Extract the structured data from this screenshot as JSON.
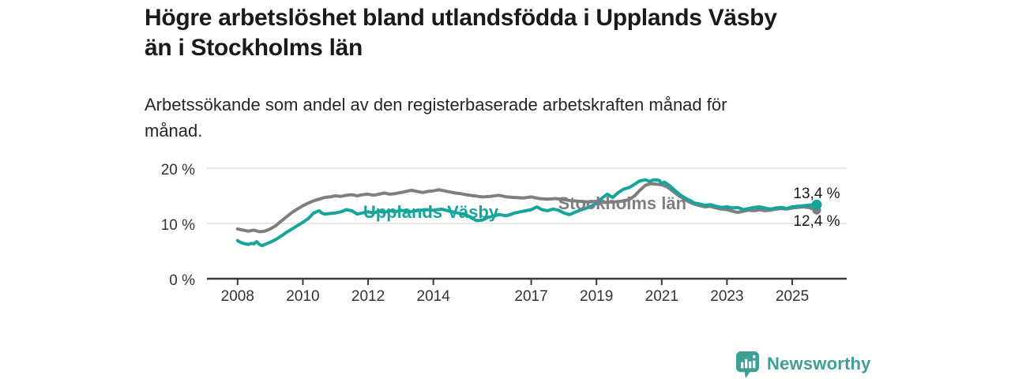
{
  "header": {
    "title_lines": [
      "Högre arbetslöshet bland utlandsfödda i Upplands Väsby",
      "än i Stockholms län"
    ],
    "subtitle_lines": [
      "Arbetssökande som andel av den registerbaserade arbetskraften månad för",
      "månad."
    ]
  },
  "chart_data": {
    "type": "line",
    "title": "Högre arbetslöshet bland utlandsfödda i Upplands Väsby än i Stockholms län",
    "subtitle": "Arbetssökande som andel av den registerbaserade arbetskraften månad för månad.",
    "xlabel": "",
    "ylabel": "",
    "grid": "horizontal",
    "legend_position": "inline-on-line",
    "xlim": [
      2007.06,
      2026.67
    ],
    "ylim": [
      0,
      20
    ],
    "x_ticks": [
      2008,
      2010,
      2012,
      2014,
      2017,
      2019,
      2021,
      2023,
      2025
    ],
    "y_ticks": [
      {
        "value": 0,
        "label": "0 %"
      },
      {
        "value": 10,
        "label": "10 %"
      },
      {
        "value": 20,
        "label": "20 %"
      }
    ],
    "style": {
      "grid_color": "#d9d9d9",
      "axis_color": "#3a3a3a",
      "tick_text_color": "#333333",
      "value_label_color": "#1a1a1a"
    },
    "series": [
      {
        "id": "stockholms-lan",
        "name": "Stockholms län",
        "color": "#7e7e83",
        "end_label": "12,4 %",
        "end_label_dy": 20,
        "dot_radius": 5.5,
        "label_at": [
          2017.82,
          12.55
        ],
        "points": [
          [
            2008.0,
            9.0
          ],
          [
            2008.17,
            8.8
          ],
          [
            2008.33,
            8.6
          ],
          [
            2008.5,
            8.8
          ],
          [
            2008.67,
            8.5
          ],
          [
            2008.83,
            8.6
          ],
          [
            2009.0,
            9.0
          ],
          [
            2009.17,
            9.6
          ],
          [
            2009.33,
            10.4
          ],
          [
            2009.5,
            11.2
          ],
          [
            2009.67,
            12.0
          ],
          [
            2009.83,
            12.6
          ],
          [
            2010.0,
            13.2
          ],
          [
            2010.17,
            13.7
          ],
          [
            2010.33,
            14.1
          ],
          [
            2010.5,
            14.4
          ],
          [
            2010.67,
            14.7
          ],
          [
            2010.83,
            14.8
          ],
          [
            2011.0,
            15.0
          ],
          [
            2011.17,
            14.9
          ],
          [
            2011.33,
            15.1
          ],
          [
            2011.5,
            15.2
          ],
          [
            2011.67,
            15.0
          ],
          [
            2011.83,
            15.2
          ],
          [
            2012.0,
            15.3
          ],
          [
            2012.17,
            15.1
          ],
          [
            2012.33,
            15.3
          ],
          [
            2012.5,
            15.5
          ],
          [
            2012.67,
            15.3
          ],
          [
            2012.83,
            15.4
          ],
          [
            2013.0,
            15.6
          ],
          [
            2013.17,
            15.8
          ],
          [
            2013.33,
            16.0
          ],
          [
            2013.5,
            15.8
          ],
          [
            2013.67,
            15.6
          ],
          [
            2013.83,
            15.8
          ],
          [
            2014.0,
            15.9
          ],
          [
            2014.17,
            16.1
          ],
          [
            2014.33,
            15.9
          ],
          [
            2014.5,
            15.7
          ],
          [
            2014.67,
            15.5
          ],
          [
            2014.83,
            15.4
          ],
          [
            2015.0,
            15.2
          ],
          [
            2015.25,
            15.0
          ],
          [
            2015.5,
            14.8
          ],
          [
            2015.75,
            14.9
          ],
          [
            2016.0,
            15.1
          ],
          [
            2016.25,
            14.8
          ],
          [
            2016.5,
            14.7
          ],
          [
            2016.75,
            14.6
          ],
          [
            2017.0,
            14.8
          ],
          [
            2017.25,
            14.5
          ],
          [
            2017.5,
            14.4
          ],
          [
            2017.75,
            14.5
          ],
          [
            2018.0,
            14.3
          ],
          [
            2018.25,
            14.1
          ],
          [
            2018.5,
            14.0
          ],
          [
            2018.75,
            13.9
          ],
          [
            2019.0,
            14.0
          ],
          [
            2019.25,
            13.8
          ],
          [
            2019.5,
            13.9
          ],
          [
            2019.75,
            14.0
          ],
          [
            2020.0,
            14.3
          ],
          [
            2020.17,
            15.0
          ],
          [
            2020.33,
            16.0
          ],
          [
            2020.5,
            16.9
          ],
          [
            2020.67,
            17.2
          ],
          [
            2020.83,
            17.1
          ],
          [
            2021.0,
            17.0
          ],
          [
            2021.17,
            16.6
          ],
          [
            2021.33,
            15.9
          ],
          [
            2021.5,
            15.1
          ],
          [
            2021.67,
            14.5
          ],
          [
            2021.83,
            13.9
          ],
          [
            2022.0,
            13.5
          ],
          [
            2022.17,
            13.2
          ],
          [
            2022.33,
            13.0
          ],
          [
            2022.5,
            13.1
          ],
          [
            2022.67,
            12.8
          ],
          [
            2022.83,
            12.6
          ],
          [
            2023.0,
            12.5
          ],
          [
            2023.17,
            12.2
          ],
          [
            2023.33,
            12.0
          ],
          [
            2023.5,
            12.2
          ],
          [
            2023.67,
            12.4
          ],
          [
            2023.83,
            12.3
          ],
          [
            2024.0,
            12.5
          ],
          [
            2024.17,
            12.3
          ],
          [
            2024.33,
            12.4
          ],
          [
            2024.5,
            12.6
          ],
          [
            2024.67,
            12.7
          ],
          [
            2024.83,
            12.6
          ],
          [
            2025.0,
            12.8
          ],
          [
            2025.17,
            12.9
          ],
          [
            2025.33,
            13.0
          ],
          [
            2025.5,
            12.9
          ],
          [
            2025.75,
            12.4
          ]
        ]
      },
      {
        "id": "upplands-vasby",
        "name": "Upplands Väsby",
        "color": "#15a59b",
        "end_label": "13,4 %",
        "end_label_dy": -8,
        "dot_radius": 6.5,
        "label_at": [
          2011.85,
          11.0
        ],
        "points": [
          [
            2008.0,
            6.9
          ],
          [
            2008.08,
            6.6
          ],
          [
            2008.17,
            6.4
          ],
          [
            2008.25,
            6.3
          ],
          [
            2008.33,
            6.2
          ],
          [
            2008.42,
            6.4
          ],
          [
            2008.5,
            6.3
          ],
          [
            2008.58,
            6.7
          ],
          [
            2008.67,
            6.2
          ],
          [
            2008.75,
            6.0
          ],
          [
            2008.83,
            6.2
          ],
          [
            2008.92,
            6.4
          ],
          [
            2009.0,
            6.6
          ],
          [
            2009.17,
            7.1
          ],
          [
            2009.33,
            7.7
          ],
          [
            2009.5,
            8.4
          ],
          [
            2009.67,
            9.0
          ],
          [
            2009.83,
            9.6
          ],
          [
            2010.0,
            10.2
          ],
          [
            2010.17,
            10.9
          ],
          [
            2010.33,
            11.9
          ],
          [
            2010.5,
            12.3
          ],
          [
            2010.58,
            11.9
          ],
          [
            2010.67,
            11.7
          ],
          [
            2010.83,
            11.8
          ],
          [
            2011.0,
            11.9
          ],
          [
            2011.17,
            12.1
          ],
          [
            2011.33,
            12.5
          ],
          [
            2011.5,
            12.3
          ],
          [
            2011.67,
            11.7
          ],
          [
            2011.83,
            11.9
          ],
          [
            2012.0,
            12.1
          ],
          [
            2012.17,
            11.9
          ],
          [
            2012.33,
            12.2
          ],
          [
            2012.5,
            12.0
          ],
          [
            2012.67,
            12.3
          ],
          [
            2012.83,
            12.1
          ],
          [
            2013.0,
            12.4
          ],
          [
            2013.25,
            12.1
          ],
          [
            2013.5,
            12.3
          ],
          [
            2013.75,
            12.5
          ],
          [
            2014.0,
            12.4
          ],
          [
            2014.25,
            12.6
          ],
          [
            2014.5,
            12.2
          ],
          [
            2014.75,
            11.9
          ],
          [
            2015.0,
            11.6
          ],
          [
            2015.17,
            11.0
          ],
          [
            2015.33,
            10.5
          ],
          [
            2015.5,
            10.6
          ],
          [
            2015.67,
            11.1
          ],
          [
            2015.83,
            11.3
          ],
          [
            2016.0,
            11.6
          ],
          [
            2016.25,
            11.4
          ],
          [
            2016.5,
            11.9
          ],
          [
            2016.75,
            12.2
          ],
          [
            2017.0,
            12.5
          ],
          [
            2017.17,
            13.0
          ],
          [
            2017.33,
            12.5
          ],
          [
            2017.5,
            12.3
          ],
          [
            2017.67,
            12.6
          ],
          [
            2017.83,
            12.4
          ],
          [
            2018.0,
            11.9
          ],
          [
            2018.17,
            11.6
          ],
          [
            2018.33,
            12.0
          ],
          [
            2018.5,
            12.4
          ],
          [
            2018.75,
            12.9
          ],
          [
            2019.0,
            13.6
          ],
          [
            2019.17,
            14.6
          ],
          [
            2019.33,
            15.3
          ],
          [
            2019.5,
            14.7
          ],
          [
            2019.67,
            15.6
          ],
          [
            2019.83,
            16.2
          ],
          [
            2020.0,
            16.5
          ],
          [
            2020.17,
            17.1
          ],
          [
            2020.33,
            17.7
          ],
          [
            2020.5,
            17.9
          ],
          [
            2020.62,
            17.6
          ],
          [
            2020.75,
            17.9
          ],
          [
            2020.92,
            17.8
          ],
          [
            2021.0,
            17.2
          ],
          [
            2021.08,
            17.5
          ],
          [
            2021.25,
            16.8
          ],
          [
            2021.42,
            15.9
          ],
          [
            2021.58,
            15.1
          ],
          [
            2021.75,
            14.5
          ],
          [
            2021.92,
            14.0
          ],
          [
            2022.0,
            13.7
          ],
          [
            2022.17,
            13.5
          ],
          [
            2022.33,
            13.3
          ],
          [
            2022.5,
            13.4
          ],
          [
            2022.67,
            13.1
          ],
          [
            2022.83,
            12.9
          ],
          [
            2023.0,
            13.0
          ],
          [
            2023.17,
            12.8
          ],
          [
            2023.33,
            12.9
          ],
          [
            2023.5,
            12.5
          ],
          [
            2023.67,
            12.7
          ],
          [
            2023.83,
            12.9
          ],
          [
            2024.0,
            13.0
          ],
          [
            2024.17,
            12.8
          ],
          [
            2024.33,
            12.6
          ],
          [
            2024.5,
            12.8
          ],
          [
            2024.67,
            12.9
          ],
          [
            2024.83,
            12.7
          ],
          [
            2025.0,
            13.0
          ],
          [
            2025.17,
            13.1
          ],
          [
            2025.33,
            13.2
          ],
          [
            2025.5,
            13.3
          ],
          [
            2025.75,
            13.4
          ]
        ]
      }
    ]
  },
  "footer": {
    "brand": "Newsworthy",
    "brand_color": "#3f9e96"
  }
}
